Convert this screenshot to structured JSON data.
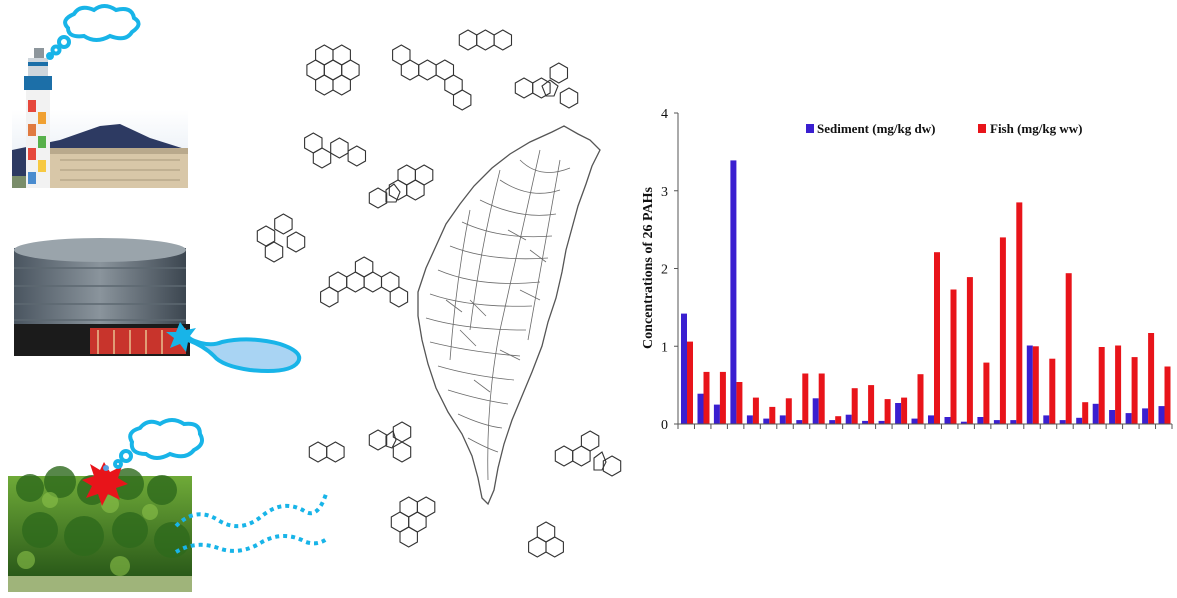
{
  "chart_data": {
    "type": "bar",
    "ylabel": "Concentrations of 26 PAHs",
    "xlabel": "",
    "ylim": [
      0,
      4
    ],
    "yticks": [
      "0",
      "1",
      "2",
      "3",
      "4"
    ],
    "legend_position": "top-right",
    "grid": false,
    "series": [
      {
        "name": "Sediment (mg/kg dw)",
        "color": "#3a1fd0",
        "values": [
          1.42,
          0.39,
          0.25,
          3.39,
          0.11,
          0.07,
          0.11,
          0.05,
          0.33,
          0.05,
          0.12,
          0.04,
          0.04,
          0.27,
          0.07,
          0.11,
          0.09,
          0.03,
          0.09,
          0.05,
          0.05,
          1.01,
          0.11,
          0.05,
          0.08,
          0.26,
          0.18,
          0.14,
          0.2,
          0.23
        ]
      },
      {
        "name": "Fish (mg/kg ww)",
        "color": "#e8141a",
        "values": [
          1.06,
          0.67,
          0.67,
          0.54,
          0.34,
          0.22,
          0.33,
          0.65,
          0.65,
          0.1,
          0.46,
          0.5,
          0.32,
          0.34,
          0.64,
          2.21,
          1.73,
          1.89,
          0.79,
          2.4,
          2.85,
          1.0,
          0.84,
          1.94,
          0.28,
          0.99,
          1.01,
          0.86,
          1.17,
          0.74
        ]
      }
    ]
  },
  "illustration": {
    "sources": [
      "smokestack-icon",
      "storage-tank-icon",
      "forest-fire-icon"
    ],
    "map": "taiwan-river-map",
    "molecules": "pah-structure-icons"
  }
}
